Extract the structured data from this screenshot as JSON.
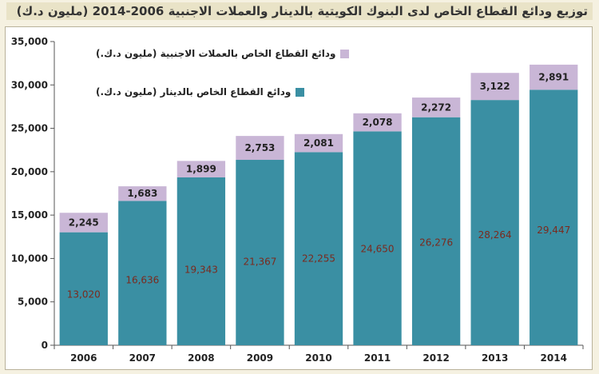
{
  "title": "توزيع ودائع القطاع الخاص لدى البنوك الكويتية بالدينار والعملات الاجنبية 2006-2014 (مليون د.ك)",
  "colors": {
    "background": "#f5f1e1",
    "title_band": "#e9e3c7",
    "dinar": "#3a8fa3",
    "foreign": "#c9b6d6"
  },
  "chart_data": {
    "type": "bar",
    "stacked": true,
    "title": "توزيع ودائع القطاع الخاص لدى البنوك الكويتية بالدينار والعملات الاجنبية 2006-2014 (مليون د.ك)",
    "categories": [
      "2006",
      "2007",
      "2008",
      "2009",
      "2010",
      "2011",
      "2012",
      "2013",
      "2014"
    ],
    "series": [
      {
        "name": "ودائع القطاع الخاص بالدينار (مليون د.ك.)",
        "color": "#3a8fa3",
        "values": [
          13020,
          16636,
          19343,
          21367,
          22255,
          24650,
          26276,
          28264,
          29447
        ],
        "labels": [
          "13,020",
          "16,636",
          "19,343",
          "21,367",
          "22,255",
          "24,650",
          "26,276",
          "28,264",
          "29,447"
        ]
      },
      {
        "name": "ودائع القطاع الخاص بالعملات الاجنبية (مليون د.ك.)",
        "color": "#c9b6d6",
        "values": [
          2245,
          1683,
          1899,
          2753,
          2081,
          2078,
          2272,
          3122,
          2891
        ],
        "labels": [
          "2,245",
          "1,683",
          "1,899",
          "2,753",
          "2,081",
          "2,078",
          "2,272",
          "3,122",
          "2,891"
        ]
      }
    ],
    "ylim": [
      0,
      35000
    ],
    "yticks": [
      0,
      5000,
      10000,
      15000,
      20000,
      25000,
      30000,
      35000
    ],
    "ytick_labels": [
      "0",
      "5,000",
      "10,000",
      "15,000",
      "20,000",
      "25,000",
      "30,000",
      "35,000"
    ],
    "xlabel": "",
    "ylabel": "",
    "grid": false,
    "legend_position": "top-left"
  }
}
